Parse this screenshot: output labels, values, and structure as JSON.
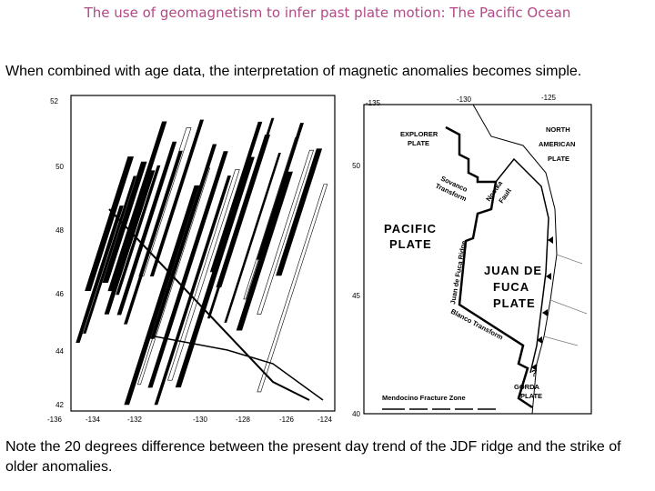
{
  "title": "The use of geomagnetism to infer past plate motion: The Pacific Ocean",
  "intro": "When combined with age data, the interpretation of magnetic anomalies becomes simple.",
  "note": "Note the 20 degrees difference between the present day trend of the JDF ridge and the strike of older anomalies.",
  "left_map": {
    "lat_labels": [
      "52",
      "50",
      "48",
      "46",
      "44",
      "42"
    ],
    "lon_labels": [
      "-136",
      "-134",
      "-132",
      "-130",
      "-128",
      "-126",
      "-124"
    ]
  },
  "right_map": {
    "lon_labels": [
      "-135",
      "-130",
      "-125"
    ],
    "lat_labels": [
      "50",
      "45",
      "40"
    ],
    "explorer_plate": [
      "EXPLORER",
      "PLATE"
    ],
    "north_american_plate": [
      "NORTH",
      "AMERICAN",
      "PLATE"
    ],
    "pacific_plate": [
      "PACIFIC",
      "PLATE"
    ],
    "juan_de_fuca_plate": [
      "JUAN DE",
      "FUCA",
      "PLATE"
    ],
    "gorda_plate": [
      "GORDA",
      "PLATE"
    ],
    "sovanco_transform": [
      "Sovanco",
      "Transform"
    ],
    "nootka_fault": [
      "Nootka",
      "Fault"
    ],
    "juan_de_fuca_ridge": "Juan de Fuca Ridge",
    "blanco_transform": "Blanco Transform",
    "mendocino": "Mendocino Fracture Zone",
    "question": "?"
  }
}
